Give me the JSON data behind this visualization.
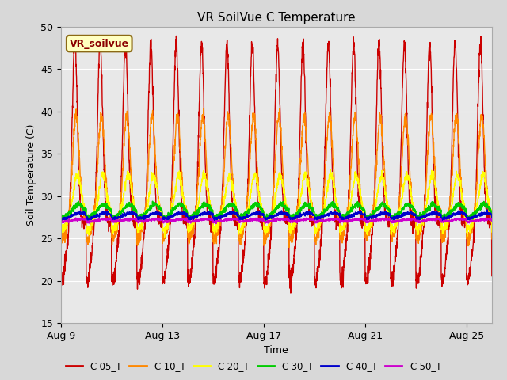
{
  "title": "VR SoilVue C Temperature",
  "xlabel": "Time",
  "ylabel": "Soil Temperature (C)",
  "ylim": [
    15,
    50
  ],
  "yticks": [
    15,
    20,
    25,
    30,
    35,
    40,
    45,
    50
  ],
  "x_tick_days": [
    0,
    4,
    8,
    12,
    16
  ],
  "x_tick_labels": [
    "Aug 9",
    "Aug 13",
    "Aug 17",
    "Aug 21",
    "Aug 25"
  ],
  "series_names": [
    "C-05_T",
    "C-10_T",
    "C-20_T",
    "C-30_T",
    "C-40_T",
    "C-50_T"
  ],
  "series_colors": [
    "#cc0000",
    "#ff8800",
    "#ffff00",
    "#00cc00",
    "#0000cc",
    "#cc00cc"
  ],
  "series_linewidths": [
    1.0,
    1.0,
    1.0,
    1.2,
    1.2,
    1.2
  ],
  "legend_label": "VR_soilvue",
  "fig_bg_color": "#d8d8d8",
  "plot_bg_color": "#e8e8e8",
  "grid_color": "#ffffff",
  "days_total": 17,
  "points_per_day": 144
}
